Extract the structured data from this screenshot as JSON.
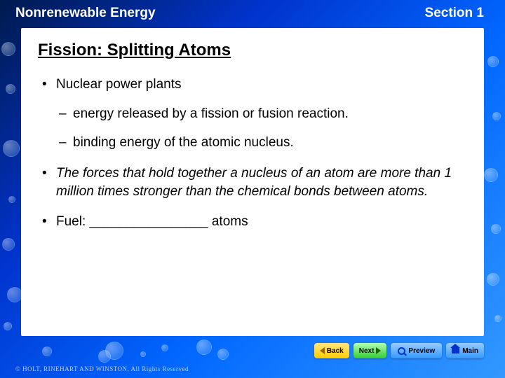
{
  "header": {
    "left": "Nonrenewable Energy",
    "right": "Section 1"
  },
  "title": "Fission: Splitting Atoms",
  "bullets": [
    {
      "text": "Nuclear power plants",
      "italic": false,
      "subs": [
        "energy released by a fission or fusion reaction.",
        "binding energy of the atomic nucleus."
      ]
    },
    {
      "text": "The forces that hold together a nucleus of an atom are more than 1 million times stronger than the chemical bonds between atoms.",
      "italic": true,
      "subs": []
    },
    {
      "text": "Fuel: ________________ atoms",
      "italic": false,
      "subs": []
    }
  ],
  "nav": {
    "back": "Back",
    "next": "Next",
    "preview": "Preview",
    "main": "Main"
  },
  "copyright": "© HOLT, RINEHART AND WINSTON, All Rights Reserved",
  "colors": {
    "bg_gradient": [
      "#001a4d",
      "#0033cc",
      "#0066ff",
      "#3399ff"
    ],
    "content_bg": "#ffffff",
    "btn_yellow": [
      "#ffe680",
      "#ffcc00"
    ],
    "btn_green": [
      "#b3ffb3",
      "#33cc33"
    ],
    "btn_blue": [
      "#99ccff",
      "#3399ff"
    ]
  },
  "bubbles": [
    {
      "t": 60,
      "l": 2,
      "s": 20
    },
    {
      "t": 120,
      "l": 8,
      "s": 14
    },
    {
      "t": 200,
      "l": 4,
      "s": 24
    },
    {
      "t": 280,
      "l": 12,
      "s": 10
    },
    {
      "t": 340,
      "l": 3,
      "s": 18
    },
    {
      "t": 410,
      "l": 10,
      "s": 22
    },
    {
      "t": 460,
      "l": 5,
      "s": 12
    },
    {
      "t": 80,
      "l": 695,
      "s": 16
    },
    {
      "t": 160,
      "l": 702,
      "s": 12
    },
    {
      "t": 240,
      "l": 690,
      "s": 20
    },
    {
      "t": 320,
      "l": 700,
      "s": 14
    },
    {
      "t": 390,
      "l": 694,
      "s": 18
    },
    {
      "t": 450,
      "l": 705,
      "s": 10
    },
    {
      "t": 495,
      "l": 60,
      "s": 14
    },
    {
      "t": 500,
      "l": 140,
      "s": 18
    },
    {
      "t": 492,
      "l": 230,
      "s": 10
    },
    {
      "t": 498,
      "l": 310,
      "s": 16
    },
    {
      "t": 488,
      "l": 150,
      "s": 26
    },
    {
      "t": 485,
      "l": 280,
      "s": 22
    },
    {
      "t": 502,
      "l": 200,
      "s": 8
    }
  ]
}
